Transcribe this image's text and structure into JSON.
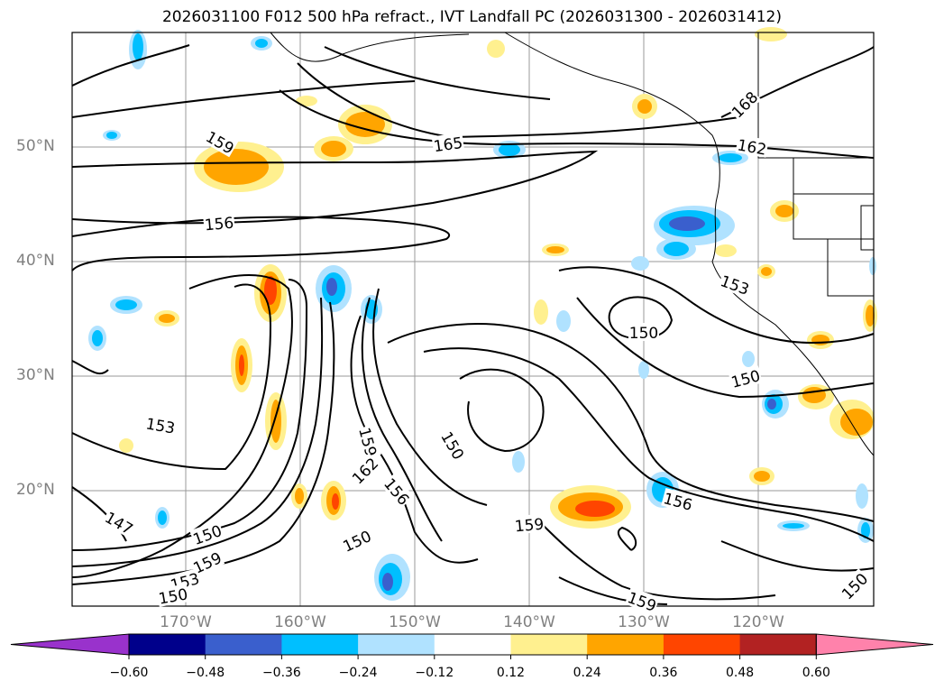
{
  "title": "2026031100 F012 500 hPa refract., IVT Landfall PC (2026031300 - 2026031412)",
  "lat_labels": [
    "50°N",
    "40°N",
    "30°N",
    "20°N"
  ],
  "lon_labels": [
    "170°W",
    "160°W",
    "150°W",
    "140°W",
    "130°W",
    "120°W"
  ],
  "contour_labels": [
    {
      "text": "159",
      "angle": 30
    },
    {
      "text": "165",
      "angle": -8
    },
    {
      "text": "168",
      "angle": -45
    },
    {
      "text": "162",
      "angle": 10
    },
    {
      "text": "156",
      "angle": -5
    },
    {
      "text": "153",
      "angle": 20
    },
    {
      "text": "150",
      "angle": 0
    },
    {
      "text": "150",
      "angle": -15
    },
    {
      "text": "153",
      "angle": 10
    },
    {
      "text": "150",
      "angle": 60
    },
    {
      "text": "159",
      "angle": 75
    },
    {
      "text": "162",
      "angle": -45
    },
    {
      "text": "156",
      "angle": 50
    },
    {
      "text": "159",
      "angle": -5
    },
    {
      "text": "156",
      "angle": 15
    },
    {
      "text": "147",
      "angle": 30
    },
    {
      "text": "150",
      "angle": -20
    },
    {
      "text": "159",
      "angle": -25
    },
    {
      "text": "153",
      "angle": -15
    },
    {
      "text": "150",
      "angle": -10
    },
    {
      "text": "150",
      "angle": -25
    },
    {
      "text": "159",
      "angle": 20
    },
    {
      "text": "150",
      "angle": -45
    }
  ],
  "colorbar": {
    "ticks": [
      "−0.60",
      "−0.48",
      "−0.36",
      "−0.24",
      "−0.12",
      "0.12",
      "0.24",
      "0.36",
      "0.48",
      "0.60"
    ],
    "colors": [
      "#9932cc",
      "#00008b",
      "#3a5fcd",
      "#00bfff",
      "#b0e2ff",
      "#ffffff",
      "#fff08f",
      "#ffa500",
      "#ff4500",
      "#b22222",
      "#ff82ab"
    ]
  },
  "colors": {
    "neg_strong": "#3a5fcd",
    "neg_mid": "#00bfff",
    "neg_weak": "#b0e2ff",
    "pos_weak": "#fff08f",
    "pos_mid": "#ffa500",
    "pos_strong": "#ff4500",
    "pos_max": "#b22222",
    "grid": "#999999",
    "contour": "#000000"
  }
}
